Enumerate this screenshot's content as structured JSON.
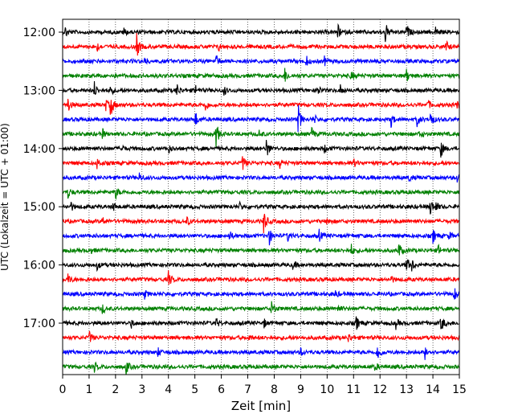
{
  "chart_data": {
    "type": "line",
    "subtype": "helicorder",
    "xlabel": "Zeit  [min]",
    "ylabel": "UTC (Lokalzeit = UTC + 01:00)",
    "xlim": [
      0,
      15
    ],
    "x_ticks": [
      0,
      1,
      2,
      3,
      4,
      5,
      6,
      7,
      8,
      9,
      10,
      11,
      12,
      13,
      14,
      15
    ],
    "y_ticks": [
      "12:00",
      "13:00",
      "14:00",
      "15:00",
      "16:00",
      "17:00"
    ],
    "grid": "vertical dotted lines at each minute",
    "row_interval_minutes": 15,
    "trace_color_cycle": [
      "#000000",
      "#ff0000",
      "#0000ff",
      "#008000"
    ],
    "rows": [
      {
        "start": "12:00",
        "color": "#000000",
        "events": [
          [
            0.1,
            7
          ],
          [
            2.3,
            6
          ],
          [
            10.4,
            9
          ],
          [
            12.2,
            13
          ],
          [
            13.0,
            10
          ],
          [
            14.1,
            6
          ]
        ]
      },
      {
        "start": "12:15",
        "color": "#ff0000",
        "events": [
          [
            1.3,
            5
          ],
          [
            2.8,
            15
          ],
          [
            5.9,
            5
          ],
          [
            14.5,
            7
          ]
        ]
      },
      {
        "start": "12:30",
        "color": "#0000ff",
        "events": [
          [
            3.1,
            5
          ],
          [
            5.8,
            8
          ],
          [
            9.2,
            7
          ],
          [
            9.9,
            5
          ]
        ]
      },
      {
        "start": "12:45",
        "color": "#008000",
        "events": [
          [
            8.4,
            9
          ],
          [
            10.9,
            6
          ],
          [
            13.0,
            8
          ]
        ]
      },
      {
        "start": "13:00",
        "color": "#000000",
        "events": [
          [
            1.2,
            10
          ],
          [
            1.8,
            7
          ],
          [
            4.3,
            9
          ],
          [
            5.0,
            8
          ],
          [
            6.1,
            6
          ],
          [
            9.6,
            9
          ],
          [
            10.5,
            6
          ]
        ]
      },
      {
        "start": "13:15",
        "color": "#ff0000",
        "events": [
          [
            0.2,
            9
          ],
          [
            1.6,
            9
          ],
          [
            1.8,
            17
          ],
          [
            5.4,
            7
          ],
          [
            13.8,
            6
          ],
          [
            14.9,
            6
          ]
        ]
      },
      {
        "start": "13:30",
        "color": "#0000ff",
        "events": [
          [
            5.0,
            11
          ],
          [
            8.9,
            19
          ],
          [
            9.5,
            6
          ],
          [
            12.4,
            10
          ],
          [
            13.4,
            9
          ],
          [
            13.9,
            11
          ]
        ]
      },
      {
        "start": "13:45",
        "color": "#008000",
        "events": [
          [
            1.5,
            6
          ],
          [
            5.8,
            17
          ],
          [
            7.4,
            6
          ],
          [
            9.4,
            9
          ],
          [
            13.5,
            5
          ]
        ]
      },
      {
        "start": "14:00",
        "color": "#000000",
        "events": [
          [
            2.2,
            5
          ],
          [
            4.0,
            5
          ],
          [
            7.7,
            15
          ],
          [
            9.9,
            5
          ],
          [
            14.3,
            11
          ]
        ]
      },
      {
        "start": "14:15",
        "color": "#ff0000",
        "events": [
          [
            1.3,
            6
          ],
          [
            6.8,
            10
          ],
          [
            8.2,
            6
          ],
          [
            11.0,
            5
          ]
        ]
      },
      {
        "start": "14:30",
        "color": "#0000ff",
        "events": [
          [
            2.9,
            6
          ],
          [
            13.1,
            5
          ],
          [
            14.9,
            6
          ]
        ]
      },
      {
        "start": "14:45",
        "color": "#008000",
        "events": [
          [
            0.2,
            8
          ],
          [
            2.0,
            8
          ]
        ]
      },
      {
        "start": "15:00",
        "color": "#000000",
        "events": [
          [
            0.3,
            6
          ],
          [
            1.9,
            6
          ],
          [
            6.7,
            5
          ],
          [
            13.9,
            11
          ],
          [
            14.1,
            6
          ]
        ]
      },
      {
        "start": "15:15",
        "color": "#ff0000",
        "events": [
          [
            1.5,
            6
          ],
          [
            4.7,
            5
          ],
          [
            7.6,
            16
          ],
          [
            10.0,
            6
          ]
        ]
      },
      {
        "start": "15:30",
        "color": "#0000ff",
        "events": [
          [
            6.3,
            6
          ],
          [
            7.8,
            12
          ],
          [
            8.5,
            7
          ],
          [
            9.7,
            7
          ],
          [
            14.0,
            9
          ],
          [
            14.6,
            5
          ]
        ]
      },
      {
        "start": "15:45",
        "color": "#008000",
        "events": [
          [
            1.0,
            6
          ],
          [
            10.9,
            8
          ],
          [
            12.7,
            11
          ],
          [
            14.2,
            6
          ]
        ]
      },
      {
        "start": "16:00",
        "color": "#000000",
        "events": [
          [
            1.3,
            5
          ],
          [
            8.7,
            6
          ],
          [
            13.0,
            10
          ],
          [
            13.2,
            7
          ]
        ]
      },
      {
        "start": "16:15",
        "color": "#ff0000",
        "events": [
          [
            0.2,
            7
          ],
          [
            4.0,
            10
          ],
          [
            12.4,
            5
          ]
        ]
      },
      {
        "start": "16:30",
        "color": "#0000ff",
        "events": [
          [
            3.1,
            5
          ],
          [
            10.3,
            5
          ],
          [
            14.8,
            10
          ]
        ]
      },
      {
        "start": "16:45",
        "color": "#008000",
        "events": [
          [
            1.5,
            6
          ],
          [
            7.9,
            12
          ],
          [
            10.4,
            5
          ]
        ]
      },
      {
        "start": "17:00",
        "color": "#000000",
        "events": [
          [
            2.6,
            5
          ],
          [
            5.8,
            6
          ],
          [
            7.6,
            6
          ],
          [
            11.1,
            9
          ],
          [
            12.6,
            6
          ],
          [
            14.3,
            12
          ]
        ]
      },
      {
        "start": "17:15",
        "color": "#ff0000",
        "events": [
          [
            1.0,
            8
          ],
          [
            7.0,
            5
          ],
          [
            10.8,
            5
          ]
        ]
      },
      {
        "start": "17:30",
        "color": "#0000ff",
        "events": [
          [
            3.6,
            5
          ],
          [
            9.0,
            5
          ],
          [
            11.9,
            13
          ],
          [
            13.7,
            8
          ]
        ]
      },
      {
        "start": "17:45",
        "color": "#008000",
        "events": [
          [
            1.2,
            6
          ],
          [
            2.4,
            9
          ],
          [
            11.8,
            5
          ]
        ]
      }
    ]
  }
}
